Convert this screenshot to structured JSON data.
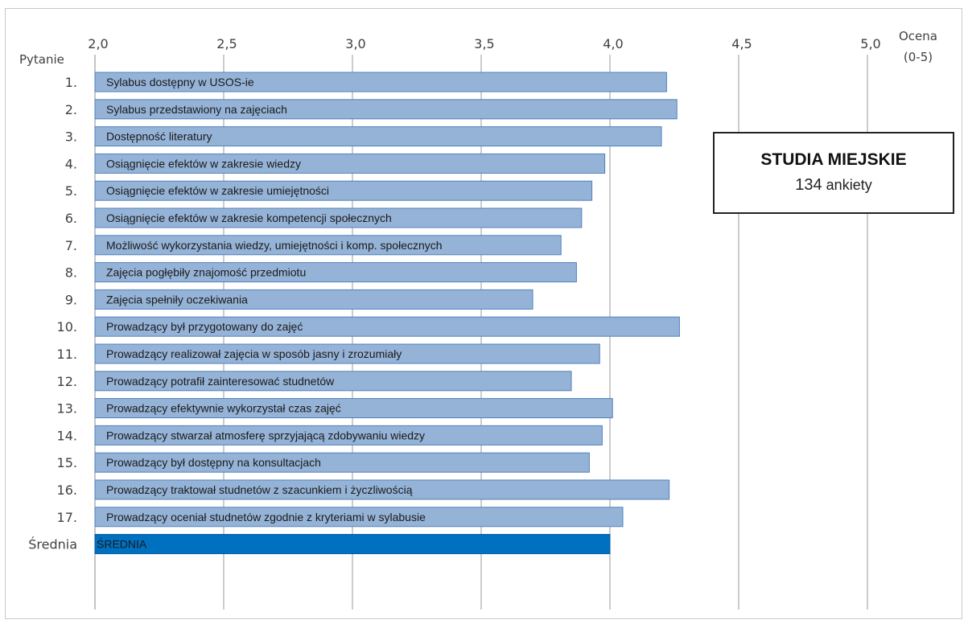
{
  "chart_data": {
    "type": "bar",
    "orientation": "horizontal",
    "row_axis_label": "Pytanie",
    "value_axis_label": [
      "Ocena",
      "(0-5)"
    ],
    "xlim": [
      2.0,
      5.0
    ],
    "ticks": [
      "2,0",
      "2,5",
      "3,0",
      "3,5",
      "4,0",
      "4,5",
      "5,0"
    ],
    "tick_values": [
      2.0,
      2.5,
      3.0,
      3.5,
      4.0,
      4.5,
      5.0
    ],
    "grid": true,
    "bar_color": "#95B3D7",
    "bar_border": "#4F81BD",
    "highlight_color": "#0070C0",
    "rows": [
      {
        "num": "1.",
        "label": "Sylabus dostępny w USOS-ie",
        "value": 4.22
      },
      {
        "num": "2.",
        "label": "Sylabus  przedstawiony  na zajęciach",
        "value": 4.26
      },
      {
        "num": "3.",
        "label": "Dostępność literatury",
        "value": 4.2
      },
      {
        "num": "4.",
        "label": "Osiągnięcie efektów w zakresie wiedzy",
        "value": 3.98
      },
      {
        "num": "5.",
        "label": "Osiągnięcie efektów w zakresie umiejętności",
        "value": 3.93
      },
      {
        "num": "6.",
        "label": "Osiągnięcie efektów w zakresie kompetencji  społecznych",
        "value": 3.89
      },
      {
        "num": "7.",
        "label": "Możliwość wykorzystania wiedzy, umiejętności i komp. społecznych",
        "value": 3.81
      },
      {
        "num": "8.",
        "label": "Zajęcia pogłębiły znajomość przedmiotu",
        "value": 3.87
      },
      {
        "num": "9.",
        "label": "Zajęcia spełniły  oczekiwania",
        "value": 3.7
      },
      {
        "num": "10.",
        "label": "Prowadzący był przygotowany do zajęć",
        "value": 4.27
      },
      {
        "num": "11.",
        "label": "Prowadzący realizował zajęcia w sposób jasny i zrozumiały",
        "value": 3.96
      },
      {
        "num": "12.",
        "label": "Prowadzący potrafił zainteresować  studnetów",
        "value": 3.85
      },
      {
        "num": "13.",
        "label": "Prowadzący  efektywnie wykorzystał czas zajęć",
        "value": 4.01
      },
      {
        "num": "14.",
        "label": "Prowadzący  stwarzał atmosferę sprzyjającą zdobywaniu wiedzy",
        "value": 3.97
      },
      {
        "num": "15.",
        "label": "Prowadzący  był dostępny na konsultacjach",
        "value": 3.92
      },
      {
        "num": "16.",
        "label": "Prowadzący  traktował studnetów  z szacunkiem i życzliwością",
        "value": 4.23
      },
      {
        "num": "17.",
        "label": "Prowadzący  oceniał studnetów  zgodnie z kryteriami w sylabusie",
        "value": 4.05
      },
      {
        "num": "Średnia",
        "label": "ŚREDNIA",
        "value": 4.0,
        "highlight": true
      }
    ]
  },
  "infobox": {
    "title": "STUDIA MIEJSKIE",
    "count": "134",
    "count_suffix": "ankiety"
  }
}
